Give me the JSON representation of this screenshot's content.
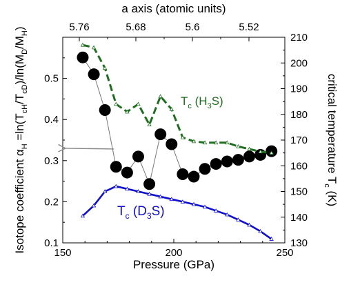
{
  "chart_data": {
    "type": "line",
    "xlabel": "Pressure (GPa)",
    "xlim": [
      150,
      250
    ],
    "x_ticks": [
      "150",
      "200",
      "250"
    ],
    "top_xlabel": "a axis (atomic units)",
    "top_x_ticks": [
      "5.76",
      "5.68",
      "5.6",
      "5.52"
    ],
    "left_ylim": [
      0.1,
      0.6
    ],
    "left_y_ticks": [
      "0.1",
      "0.2",
      "0.3",
      "0.4",
      "0.5"
    ],
    "right_ylabel": "critical temperature T",
    "right_ylabel_sub": "c",
    "right_ylabel_unit": " (K)",
    "right_ylim": [
      130,
      210
    ],
    "right_y_ticks": [
      "130",
      "140",
      "150",
      "160",
      "170",
      "180",
      "190",
      "200",
      "210"
    ],
    "left_ylabel": {
      "main": "Isotope coefficient α",
      "sub1": "H",
      "eq": " =ln(T",
      "sub2": "cH",
      "slash1": "/T",
      "sub3": "cD",
      "mid": ")/ln(M",
      "sub4": "D",
      "slash2": "/M",
      "sub5": "H",
      "end": ")"
    },
    "series": [
      {
        "name": "isotope coefficient α_H",
        "axis": "left",
        "color": "#000000",
        "marker": "filled-circle",
        "x": [
          159,
          164,
          169,
          174,
          179,
          184,
          189,
          194,
          199,
          204,
          209,
          214,
          219,
          224,
          229,
          234,
          239,
          244
        ],
        "y": [
          0.551,
          0.51,
          0.423,
          0.285,
          0.271,
          0.31,
          0.243,
          0.364,
          0.34,
          0.267,
          0.261,
          0.28,
          0.292,
          0.298,
          0.302,
          0.31,
          0.314,
          0.323
        ]
      },
      {
        "name": "T_c(H3S)",
        "axis": "right",
        "color": "#1f6e1f",
        "marker": "open-triangle",
        "label_main": "T",
        "label_sub": "c",
        "label_open": " (H",
        "label_sub2": "3",
        "label_close": "S)",
        "x": [
          159,
          164,
          169,
          174,
          179,
          184,
          189,
          194,
          199,
          204,
          209,
          214,
          219,
          224,
          229,
          234,
          239,
          244
        ],
        "y": [
          207,
          206,
          198,
          184,
          181,
          184,
          176,
          187,
          182,
          171,
          169.5,
          169,
          169,
          169,
          167.5,
          166.5,
          165.5,
          165
        ]
      },
      {
        "name": "T_c(D3S)",
        "axis": "right",
        "color": "#1010cc",
        "marker": "open-triangle",
        "label_main": "T",
        "label_sub": "c",
        "label_open": " (D",
        "label_sub2": "3",
        "label_close": "S)",
        "x": [
          159,
          164,
          169,
          174,
          179,
          184,
          189,
          194,
          199,
          204,
          209,
          214,
          219,
          224,
          229,
          234,
          239,
          244
        ],
        "y": [
          140.5,
          144.5,
          150,
          152,
          151,
          150,
          149,
          148,
          147,
          146,
          145,
          144,
          142.5,
          141,
          139,
          137,
          134.5,
          131.5
        ]
      }
    ],
    "annotation": {
      "type": "arrow",
      "direction": "left",
      "color": "#888888",
      "target_value": 0.33
    },
    "grid": false,
    "legend": "inline-labels"
  }
}
